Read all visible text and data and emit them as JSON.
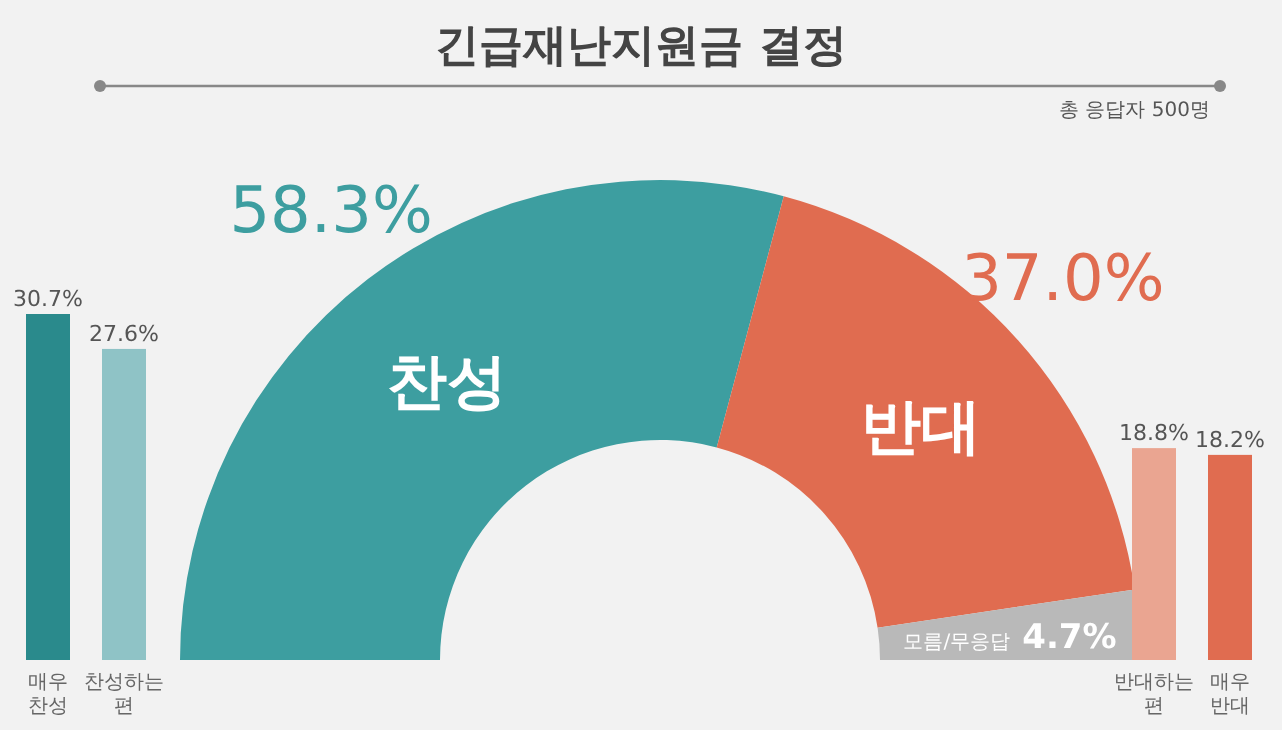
{
  "chart_data": [
    {
      "type": "bar",
      "categories": [
        "매우 찬성",
        "찬성하는 편"
      ],
      "values": [
        30.7,
        27.6
      ],
      "colors": [
        "#2a8a8c",
        "#8fc3c6"
      ],
      "value_labels": [
        "30.7%",
        "27.6%"
      ]
    },
    {
      "type": "donut",
      "title": "긴급재난지원금 결정",
      "annotations": [
        "총 응답자 500명"
      ],
      "categories": [
        "찬성",
        "반대",
        "모름/무응답"
      ],
      "values": [
        58.3,
        37.0,
        4.7
      ],
      "colors": [
        "#3d9ea0",
        "#e06c50",
        "#b9b9b9"
      ],
      "value_labels": [
        "58.3%",
        "37.0%",
        "4.7%"
      ]
    },
    {
      "type": "bar",
      "categories": [
        "반대하는 편",
        "매우 반대"
      ],
      "values": [
        18.8,
        18.2
      ],
      "colors": [
        "#eaa591",
        "#e06c50"
      ],
      "value_labels": [
        "18.8%",
        "18.2%"
      ]
    }
  ]
}
